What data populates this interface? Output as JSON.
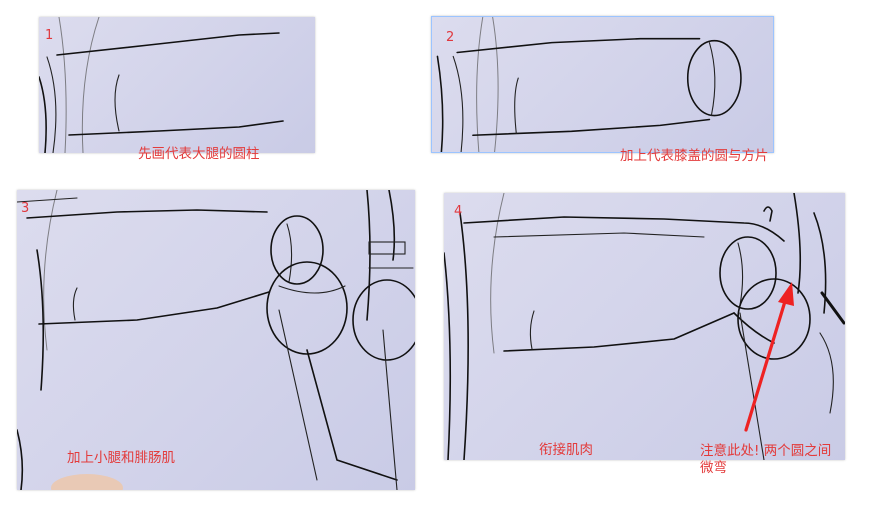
{
  "panels": [
    {
      "number": "1",
      "caption": "先画代表大腿的圆柱"
    },
    {
      "number": "2",
      "caption": "加上代表膝盖的圆与方片"
    },
    {
      "number": "3",
      "caption": "加上小腿和腓肠肌"
    },
    {
      "number": "4",
      "caption": "衔接肌肉"
    }
  ],
  "annotation": {
    "text_line1": "注意此处! 两个圆之间",
    "text_line2": "微弯"
  },
  "colors": {
    "caption": "#e33b3b",
    "arrow": "#ee2222",
    "panel_bg": "#d4d5ea"
  }
}
